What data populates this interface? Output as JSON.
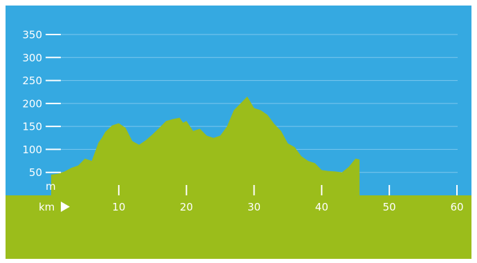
{
  "colors": {
    "sky": "#35a9e1",
    "ground": "#9bbd1b",
    "profile": "#9bbd1b",
    "text": "#ffffff",
    "grid": "#7ec8ee"
  },
  "chart_data": {
    "type": "area",
    "title": "",
    "xlabel": "km",
    "ylabel": "m",
    "xlim": [
      0,
      60
    ],
    "ylim": [
      0,
      350
    ],
    "x_ticks": [
      10,
      20,
      30,
      40,
      50,
      60
    ],
    "y_ticks": [
      50,
      100,
      150,
      200,
      250,
      300,
      350
    ],
    "grid": "horizontal",
    "series": [
      {
        "x": [
          0,
          1,
          2,
          3,
          4,
          5,
          6,
          7,
          7.5,
          8,
          9,
          10,
          11,
          12,
          13,
          14,
          15,
          16,
          17,
          18,
          19,
          19.5,
          20,
          21,
          22,
          23,
          24,
          25,
          26,
          27,
          28,
          29,
          30,
          31,
          32,
          33,
          34,
          35,
          36,
          37,
          38,
          39,
          40,
          41,
          42,
          43,
          44,
          45,
          45.6
        ],
        "y": [
          45,
          47,
          52,
          60,
          65,
          80,
          75,
          115,
          125,
          138,
          152,
          157,
          147,
          118,
          110,
          120,
          133,
          147,
          162,
          166,
          169,
          158,
          162,
          140,
          145,
          130,
          125,
          130,
          150,
          185,
          200,
          215,
          190,
          185,
          175,
          155,
          140,
          113,
          105,
          85,
          75,
          70,
          55,
          53,
          52,
          50,
          62,
          80,
          78
        ]
      }
    ]
  }
}
